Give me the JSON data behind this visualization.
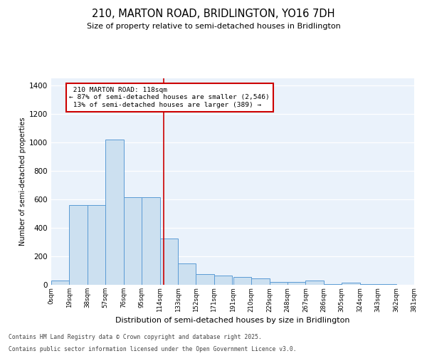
{
  "title_line1": "210, MARTON ROAD, BRIDLINGTON, YO16 7DH",
  "title_line2": "Size of property relative to semi-detached houses in Bridlington",
  "xlabel": "Distribution of semi-detached houses by size in Bridlington",
  "ylabel": "Number of semi-detached properties",
  "bin_labels": [
    "0sqm",
    "19sqm",
    "38sqm",
    "57sqm",
    "76sqm",
    "95sqm",
    "114sqm",
    "133sqm",
    "152sqm",
    "171sqm",
    "191sqm",
    "210sqm",
    "229sqm",
    "248sqm",
    "267sqm",
    "286sqm",
    "305sqm",
    "324sqm",
    "343sqm",
    "362sqm",
    "381sqm"
  ],
  "bin_edges": [
    0,
    19,
    38,
    57,
    76,
    95,
    114,
    133,
    152,
    171,
    191,
    210,
    229,
    248,
    267,
    286,
    305,
    324,
    343,
    362,
    381
  ],
  "bar_heights": [
    30,
    560,
    560,
    1020,
    615,
    615,
    325,
    150,
    75,
    65,
    55,
    45,
    20,
    20,
    30,
    5,
    15,
    5,
    5,
    0,
    5
  ],
  "bar_color": "#cce0f0",
  "bar_edge_color": "#5b9bd5",
  "property_size": 118,
  "property_label": "210 MARTON ROAD: 118sqm",
  "pct_smaller": 87,
  "count_smaller": 2546,
  "pct_larger": 13,
  "count_larger": 389,
  "vline_color": "#cc0000",
  "annotation_box_color": "#cc0000",
  "ylim": [
    0,
    1450
  ],
  "yticks": [
    0,
    200,
    400,
    600,
    800,
    1000,
    1200,
    1400
  ],
  "background_color": "#eaf2fb",
  "grid_color": "#ffffff",
  "fig_background": "#ffffff",
  "footer_line1": "Contains HM Land Registry data © Crown copyright and database right 2025.",
  "footer_line2": "Contains public sector information licensed under the Open Government Licence v3.0."
}
